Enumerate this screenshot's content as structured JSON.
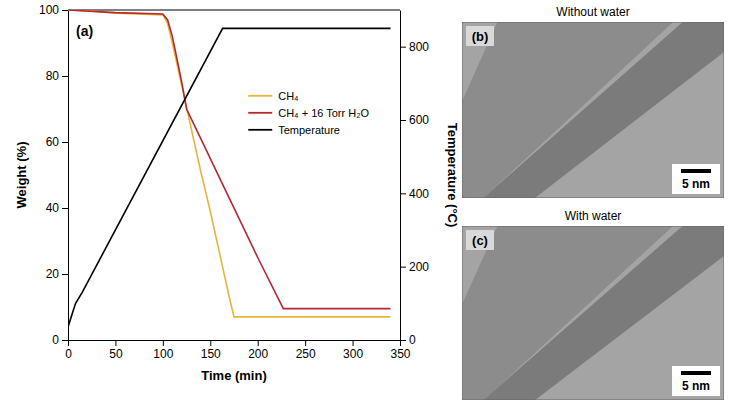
{
  "chart_data": {
    "type": "line",
    "panel_label": "(a)",
    "x_label": "Time (min)",
    "y_label": "Weight (%)",
    "y2_label": "Temperature (°C)",
    "xlim": [
      0,
      350
    ],
    "xticks": [
      0,
      50,
      100,
      150,
      200,
      250,
      300,
      350
    ],
    "ylim": [
      0,
      100
    ],
    "yticks": [
      0,
      20,
      40,
      60,
      80,
      100
    ],
    "y2lim": [
      0,
      900
    ],
    "y2ticks": [
      0,
      200,
      400,
      600,
      800
    ],
    "legend": "center right",
    "series": [
      {
        "name": "CH₄",
        "color": "#e8b33a",
        "axis": "y",
        "x": [
          0,
          20,
          50,
          80,
          100,
          105,
          110,
          120,
          130,
          140,
          150,
          160,
          170,
          175,
          200,
          250,
          300,
          340
        ],
        "values": [
          100,
          99.8,
          99,
          98.7,
          98.5,
          96,
          90,
          77,
          64,
          51,
          39,
          26,
          13,
          7,
          7,
          7,
          7,
          7
        ]
      },
      {
        "name": "CH₄ + 16 Torr H₂O",
        "color": "#b5282e",
        "axis": "y",
        "x": [
          0,
          50,
          100,
          105,
          110,
          120,
          125,
          140,
          160,
          180,
          200,
          220,
          227,
          250,
          300,
          340
        ],
        "values": [
          100,
          99.2,
          98.8,
          97,
          92,
          78,
          70,
          61,
          49,
          37,
          25,
          13.5,
          9.5,
          9.5,
          9.5,
          9.5
        ]
      },
      {
        "name": "Temperature",
        "color": "#000000",
        "axis": "y2",
        "x": [
          0,
          3,
          8,
          15,
          163,
          200,
          250,
          300,
          340
        ],
        "values": [
          35,
          60,
          100,
          130,
          850,
          850,
          850,
          850,
          850
        ]
      }
    ]
  },
  "panels": [
    {
      "letter": "(b)",
      "title": "Without water",
      "scale_bar": "5 nm"
    },
    {
      "letter": "(c)",
      "title": "With water",
      "scale_bar": "5 nm"
    }
  ]
}
